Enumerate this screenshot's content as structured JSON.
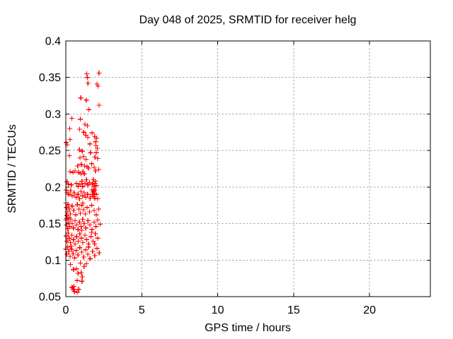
{
  "window": {
    "background": "#ffffff"
  },
  "chart_data": {
    "type": "scatter",
    "title": "Day 048 of 2025, SRMTID for receiver helg",
    "xlabel": "GPS time / hours",
    "ylabel": "SRMTID / TECUs",
    "xlim": [
      0,
      24
    ],
    "ylim": [
      0.05,
      0.4
    ],
    "x_ticks": [
      0,
      5,
      10,
      15,
      20
    ],
    "x_tick_labels": [
      "0",
      "5",
      "10",
      "15",
      "20"
    ],
    "y_ticks": [
      0.05,
      0.1,
      0.15,
      0.2,
      0.25,
      0.3,
      0.35,
      0.4
    ],
    "y_tick_labels": [
      "0.05",
      "0.1",
      "0.15",
      "0.2",
      "0.25",
      "0.3",
      "0.35",
      "0.4"
    ],
    "grid": true,
    "legend_position": "none",
    "marker": "plus",
    "colors": {
      "marker": "#ff0000",
      "grid": "#a8a8a8",
      "axis": "#000000",
      "text": "#000000",
      "background": "#ffffff"
    },
    "series": [
      {
        "name": "SRMTID",
        "points": [
          [
            1.38,
            0.355
          ],
          [
            1.42,
            0.35
          ],
          [
            2.18,
            0.356
          ],
          [
            1.46,
            0.342
          ],
          [
            2.05,
            0.341
          ],
          [
            2.12,
            0.338
          ],
          [
            0.99,
            0.322
          ],
          [
            1.34,
            0.319
          ],
          [
            2.19,
            0.312
          ],
          [
            1.52,
            0.306
          ],
          [
            0.4,
            0.294
          ],
          [
            0.95,
            0.293
          ],
          [
            1.26,
            0.286
          ],
          [
            1.42,
            0.284
          ],
          [
            0.25,
            0.28
          ],
          [
            0.91,
            0.279
          ],
          [
            1.18,
            0.275
          ],
          [
            1.73,
            0.274
          ],
          [
            2.03,
            0.267
          ],
          [
            0.28,
            0.265
          ],
          [
            1.32,
            0.271
          ],
          [
            1.44,
            0.268
          ],
          [
            1.9,
            0.269
          ],
          [
            1.96,
            0.262
          ],
          [
            0.03,
            0.261
          ],
          [
            0.1,
            0.258
          ],
          [
            0.9,
            0.251
          ],
          [
            1.08,
            0.249
          ],
          [
            1.58,
            0.259
          ],
          [
            1.98,
            0.257
          ],
          [
            2.07,
            0.253
          ],
          [
            2.0,
            0.247
          ],
          [
            0.23,
            0.243
          ],
          [
            0.93,
            0.24
          ],
          [
            1.16,
            0.242
          ],
          [
            1.33,
            0.238
          ],
          [
            1.92,
            0.241
          ],
          [
            2.1,
            0.239
          ],
          [
            1.62,
            0.247
          ],
          [
            0.78,
            0.229
          ],
          [
            1.01,
            0.231
          ],
          [
            1.24,
            0.229
          ],
          [
            1.4,
            0.228
          ],
          [
            1.48,
            0.226
          ],
          [
            1.86,
            0.227
          ],
          [
            0.28,
            0.221
          ],
          [
            0.47,
            0.22
          ],
          [
            0.6,
            0.222
          ],
          [
            0.85,
            0.22
          ],
          [
            1.0,
            0.218
          ],
          [
            1.13,
            0.221
          ],
          [
            1.22,
            0.218
          ],
          [
            1.95,
            0.222
          ],
          [
            2.16,
            0.224
          ],
          [
            1.7,
            0.232
          ],
          [
            0.08,
            0.207
          ],
          [
            0.16,
            0.204
          ],
          [
            0.36,
            0.203
          ],
          [
            0.7,
            0.205
          ],
          [
            0.81,
            0.201
          ],
          [
            0.93,
            0.204
          ],
          [
            1.06,
            0.208
          ],
          [
            1.11,
            0.201
          ],
          [
            1.26,
            0.205
          ],
          [
            1.36,
            0.21
          ],
          [
            1.46,
            0.203
          ],
          [
            1.56,
            0.206
          ],
          [
            1.76,
            0.204
          ],
          [
            1.86,
            0.201
          ],
          [
            1.96,
            0.208
          ],
          [
            2.01,
            0.202
          ],
          [
            1.81,
            0.21
          ],
          [
            1.91,
            0.205
          ],
          [
            0.02,
            0.196
          ],
          [
            0.1,
            0.192
          ],
          [
            0.2,
            0.19
          ],
          [
            0.31,
            0.195
          ],
          [
            0.42,
            0.188
          ],
          [
            0.55,
            0.192
          ],
          [
            0.68,
            0.186
          ],
          [
            0.8,
            0.19
          ],
          [
            0.9,
            0.184
          ],
          [
            1.0,
            0.194
          ],
          [
            1.1,
            0.188
          ],
          [
            1.21,
            0.192
          ],
          [
            1.3,
            0.186
          ],
          [
            1.43,
            0.19
          ],
          [
            1.6,
            0.185
          ],
          [
            1.72,
            0.196
          ],
          [
            1.78,
            0.193
          ],
          [
            1.84,
            0.197
          ],
          [
            1.88,
            0.191
          ],
          [
            1.93,
            0.196
          ],
          [
            1.8,
            0.187
          ],
          [
            1.9,
            0.185
          ],
          [
            2.0,
            0.19
          ],
          [
            2.1,
            0.184
          ],
          [
            1.75,
            0.19
          ],
          [
            1.85,
            0.194
          ],
          [
            0.0,
            0.178
          ],
          [
            0.05,
            0.172
          ],
          [
            0.1,
            0.166
          ],
          [
            0.15,
            0.176
          ],
          [
            0.22,
            0.17
          ],
          [
            0.3,
            0.163
          ],
          [
            0.41,
            0.174
          ],
          [
            0.52,
            0.168
          ],
          [
            0.65,
            0.162
          ],
          [
            0.76,
            0.176
          ],
          [
            0.86,
            0.17
          ],
          [
            0.95,
            0.164
          ],
          [
            1.05,
            0.175
          ],
          [
            1.16,
            0.169
          ],
          [
            1.28,
            0.163
          ],
          [
            1.4,
            0.172
          ],
          [
            1.56,
            0.166
          ],
          [
            1.7,
            0.175
          ],
          [
            1.86,
            0.168
          ],
          [
            2.0,
            0.162
          ],
          [
            2.16,
            0.17
          ],
          [
            0.06,
            0.161
          ],
          [
            1.12,
            0.178
          ],
          [
            0.0,
            0.155
          ],
          [
            0.04,
            0.148
          ],
          [
            0.08,
            0.157
          ],
          [
            0.13,
            0.143
          ],
          [
            0.18,
            0.152
          ],
          [
            0.25,
            0.146
          ],
          [
            0.33,
            0.156
          ],
          [
            0.42,
            0.15
          ],
          [
            0.5,
            0.144
          ],
          [
            0.61,
            0.154
          ],
          [
            0.7,
            0.148
          ],
          [
            0.8,
            0.142
          ],
          [
            0.9,
            0.152
          ],
          [
            1.0,
            0.146
          ],
          [
            1.11,
            0.156
          ],
          [
            1.2,
            0.15
          ],
          [
            1.32,
            0.144
          ],
          [
            1.46,
            0.154
          ],
          [
            1.58,
            0.148
          ],
          [
            1.72,
            0.142
          ],
          [
            1.86,
            0.152
          ],
          [
            1.98,
            0.146
          ],
          [
            2.1,
            0.155
          ],
          [
            2.26,
            0.149
          ],
          [
            0.21,
            0.158
          ],
          [
            1.05,
            0.141
          ],
          [
            0.02,
            0.133
          ],
          [
            0.08,
            0.126
          ],
          [
            0.15,
            0.137
          ],
          [
            0.22,
            0.13
          ],
          [
            0.3,
            0.124
          ],
          [
            0.4,
            0.134
          ],
          [
            0.5,
            0.128
          ],
          [
            0.6,
            0.122
          ],
          [
            0.71,
            0.132
          ],
          [
            0.81,
            0.126
          ],
          [
            0.92,
            0.136
          ],
          [
            1.02,
            0.13
          ],
          [
            1.12,
            0.124
          ],
          [
            1.26,
            0.134
          ],
          [
            1.38,
            0.128
          ],
          [
            1.5,
            0.122
          ],
          [
            1.66,
            0.132
          ],
          [
            1.8,
            0.126
          ],
          [
            1.95,
            0.136
          ],
          [
            2.1,
            0.13
          ],
          [
            1.7,
            0.138
          ],
          [
            1.9,
            0.122
          ],
          [
            0.0,
            0.115
          ],
          [
            0.06,
            0.108
          ],
          [
            0.12,
            0.118
          ],
          [
            0.2,
            0.112
          ],
          [
            0.28,
            0.105
          ],
          [
            0.38,
            0.115
          ],
          [
            0.48,
            0.109
          ],
          [
            0.58,
            0.103
          ],
          [
            0.68,
            0.113
          ],
          [
            0.8,
            0.107
          ],
          [
            0.92,
            0.117
          ],
          [
            1.05,
            0.111
          ],
          [
            1.18,
            0.104
          ],
          [
            1.3,
            0.114
          ],
          [
            1.45,
            0.108
          ],
          [
            1.6,
            0.102
          ],
          [
            1.76,
            0.112
          ],
          [
            1.9,
            0.106
          ],
          [
            2.05,
            0.116
          ],
          [
            2.2,
            0.11
          ],
          [
            0.34,
            0.119
          ],
          [
            1.5,
            0.118
          ],
          [
            0.5,
            0.087
          ],
          [
            0.7,
            0.088
          ],
          [
            0.8,
            0.082
          ],
          [
            1.01,
            0.083
          ],
          [
            1.08,
            0.077
          ],
          [
            0.74,
            0.072
          ],
          [
            1.06,
            0.071
          ],
          [
            0.39,
            0.063
          ],
          [
            0.54,
            0.064
          ],
          [
            0.5,
            0.06
          ],
          [
            0.85,
            0.06
          ],
          [
            0.45,
            0.062
          ],
          [
            0.57,
            0.057
          ],
          [
            0.75,
            0.056
          ],
          [
            1.2,
            0.091
          ],
          [
            1.35,
            0.095
          ],
          [
            0.3,
            0.094
          ],
          [
            0.95,
            0.096
          ]
        ]
      }
    ]
  }
}
